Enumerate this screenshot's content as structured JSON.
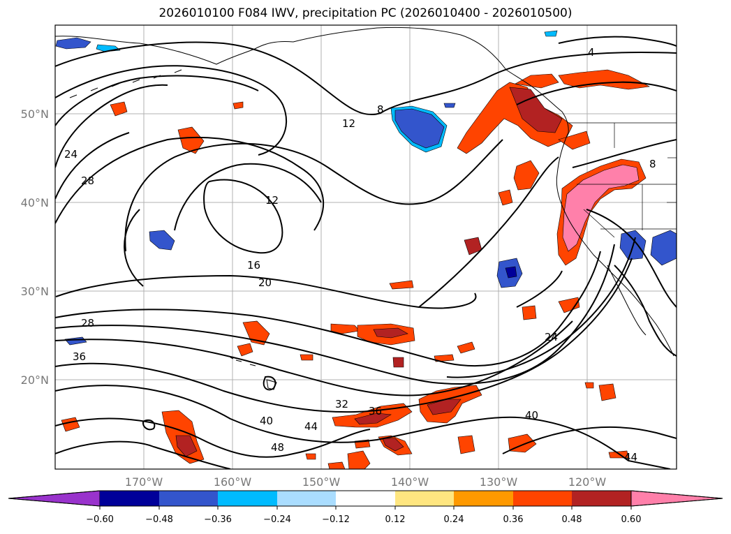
{
  "title": "2026010100 F084 IWV, precipitation PC (2026010400 - 2026010500)",
  "map": {
    "lon_range": [
      -180,
      -110
    ],
    "lat_range": [
      10,
      60
    ],
    "lat_ticks": [
      "50°N",
      "40°N",
      "30°N",
      "20°N"
    ],
    "lat_values": [
      50,
      40,
      30,
      20
    ],
    "lon_ticks": [
      "170°W",
      "160°W",
      "150°W",
      "140°W",
      "130°W",
      "120°W"
    ],
    "lon_values": [
      -170,
      -160,
      -150,
      -140,
      -130,
      -120
    ],
    "contour_labels": [
      "4",
      "8",
      "8",
      "12",
      "12",
      "16",
      "20",
      "24",
      "28",
      "24",
      "28",
      "36",
      "32",
      "36",
      "40",
      "44",
      "48",
      "40",
      "44"
    ]
  },
  "colorbar": {
    "tick_labels": [
      "−0.60",
      "−0.48",
      "−0.36",
      "−0.24",
      "−0.12",
      "0.12",
      "0.24",
      "0.36",
      "0.48",
      "0.60"
    ],
    "colors": [
      "#9933cc",
      "#000099",
      "#3355cc",
      "#00bbff",
      "#aaddff",
      "#ffffff",
      "#ffe680",
      "#ff9900",
      "#ff4400",
      "#b22222",
      "#ff80aa"
    ]
  }
}
